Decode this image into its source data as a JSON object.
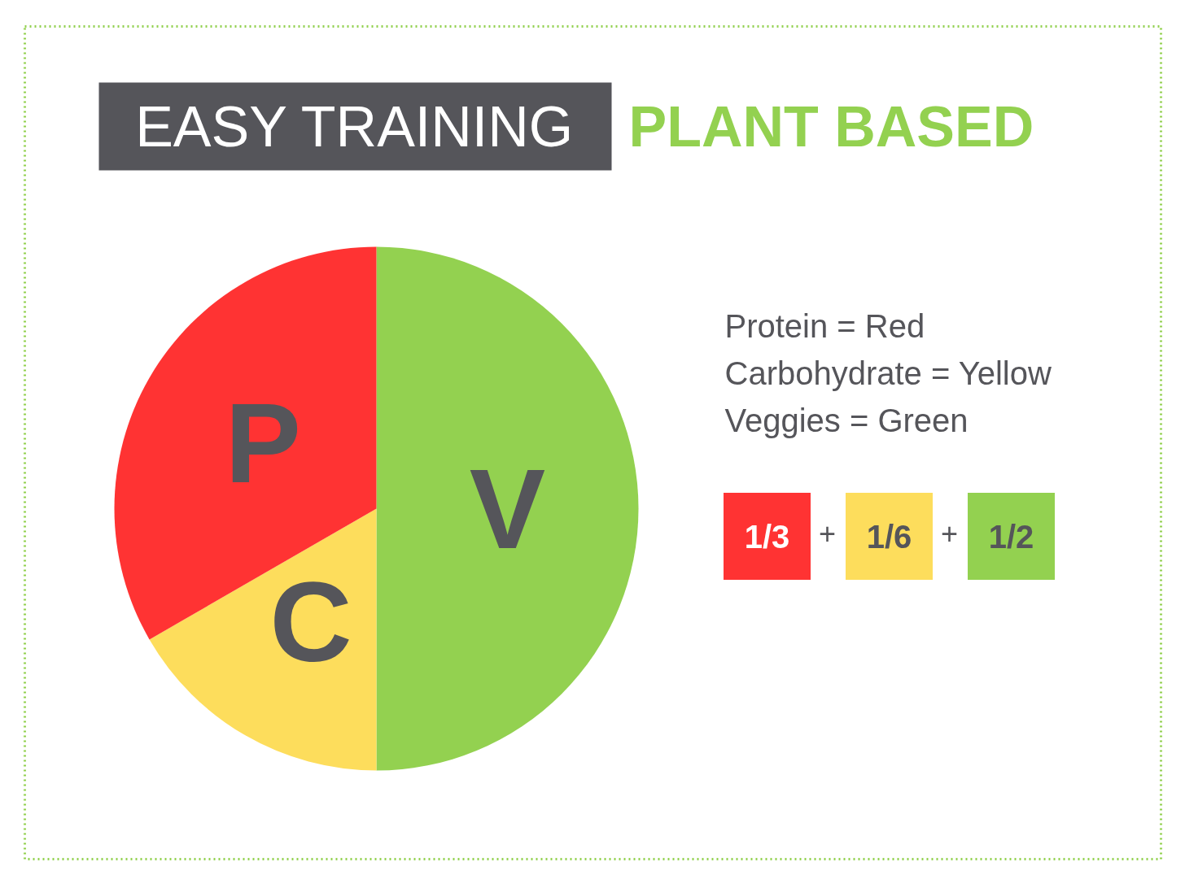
{
  "chart_data": {
    "type": "pie",
    "title": "EASY TRAINING",
    "subtitle": "PLANT BASED",
    "categories": [
      "V",
      "C",
      "P"
    ],
    "values": [
      50,
      16.67,
      33.33
    ],
    "colors": [
      "#93d150",
      "#fddd5c",
      "#ff3333"
    ],
    "annotations": [
      "Protein = Red",
      "Carbohydrate = Yellow",
      "Veggies = Green",
      "1/3",
      "+",
      "1/6",
      "+",
      "1/2"
    ]
  }
}
